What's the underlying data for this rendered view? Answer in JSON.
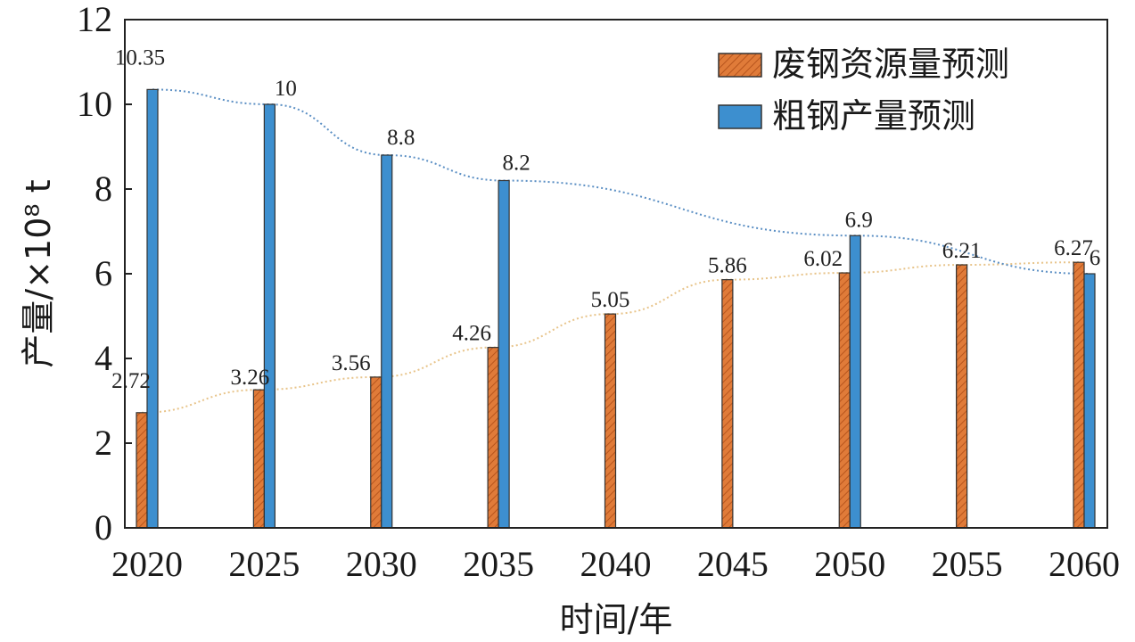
{
  "chart_data": {
    "type": "bar",
    "title": "",
    "xlabel": "时间/年",
    "ylabel": "产量/×10⁸ t",
    "ylim": [
      0,
      12
    ],
    "yticks": [
      "0",
      "2",
      "4",
      "6",
      "8",
      "10",
      "12"
    ],
    "categories": [
      "2020",
      "2025",
      "2030",
      "2035",
      "2040",
      "2045",
      "2050",
      "2055",
      "2060"
    ],
    "series": [
      {
        "name": "废钢资源量预测",
        "color": "#e07b39",
        "pattern": "hatched",
        "values": [
          2.72,
          3.26,
          3.56,
          4.26,
          5.05,
          5.86,
          6.02,
          6.21,
          6.27
        ],
        "labels": [
          "2.72",
          "3.26",
          "3.56",
          "4.26",
          "5.05",
          "5.86",
          "6.02",
          "6.21",
          "6.27"
        ],
        "trendline": "dotted"
      },
      {
        "name": "粗钢产量预测",
        "color": "#3d8fcf",
        "pattern": "solid",
        "values": [
          10.35,
          10,
          8.8,
          8.2,
          null,
          null,
          6.9,
          null,
          6
        ],
        "labels": [
          "10.35",
          "10",
          "8.8",
          "8.2",
          null,
          null,
          "6.9",
          null,
          "6"
        ],
        "trendline": "dotted"
      }
    ],
    "legend": "top-right",
    "grid": false
  }
}
